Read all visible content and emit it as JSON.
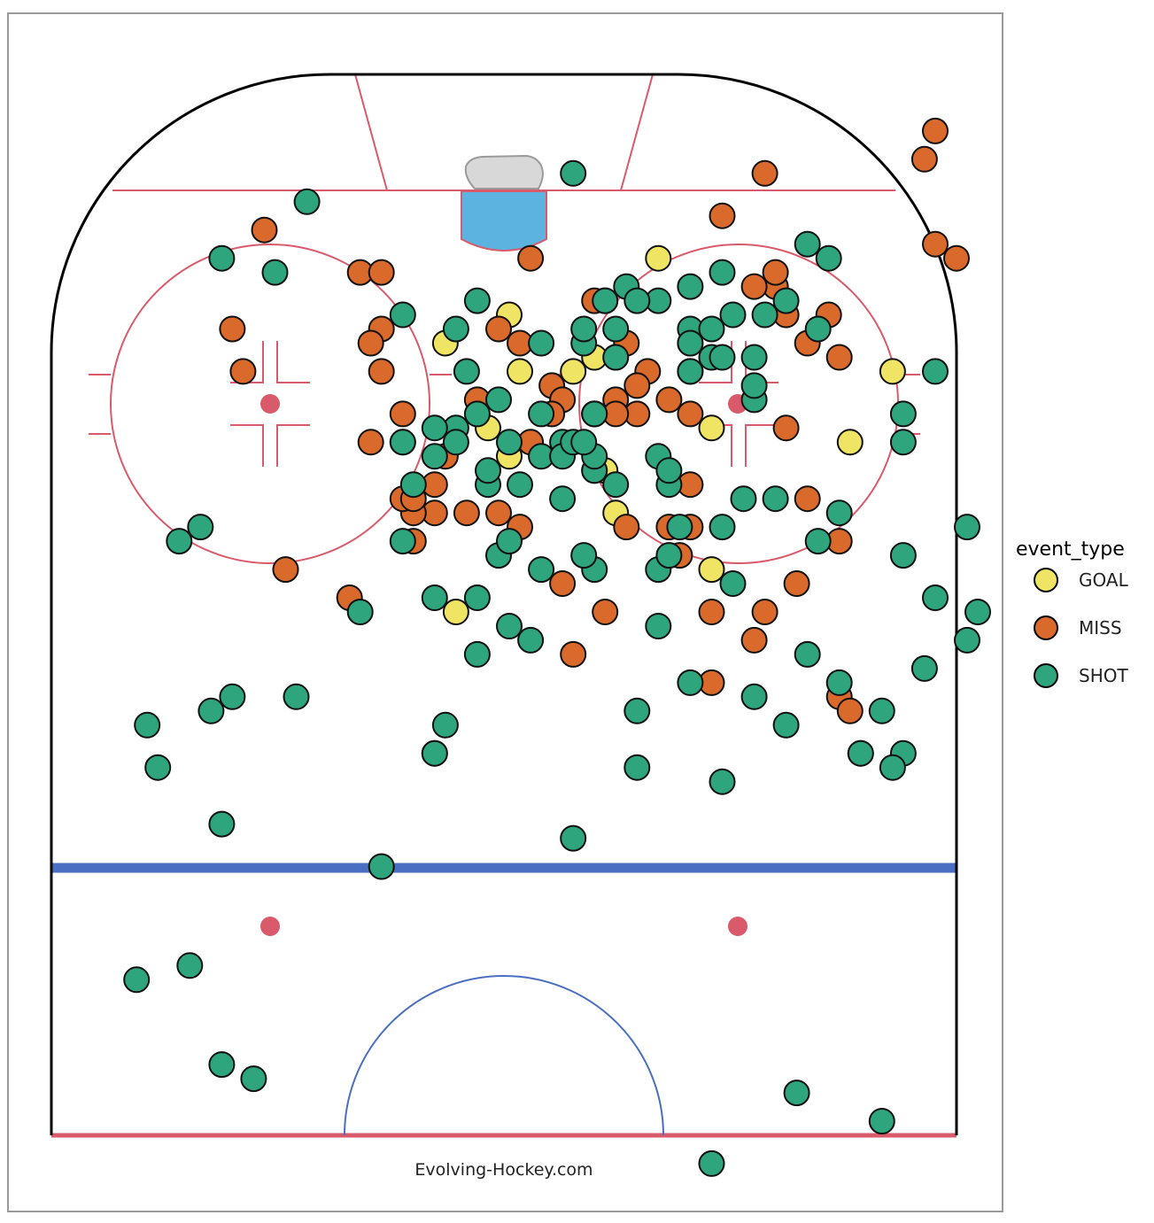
{
  "chart_data": {
    "type": "scatter",
    "title": "",
    "xlabel": "",
    "ylabel": "",
    "legend": {
      "title": "event_type",
      "position": "right",
      "entries": [
        {
          "label": "GOAL",
          "color": "#f0e464"
        },
        {
          "label": "MISS",
          "color": "#d96a2b"
        },
        {
          "label": "SHOT",
          "color": "#2ea57c"
        }
      ]
    },
    "rink_colors": {
      "boards": "#000000",
      "red_line": "#d95a6a",
      "blue_line": "#4a6fc2",
      "crease": "#5cb3df",
      "net": "#d8d8d8",
      "panel_border": "#9a9a9a"
    },
    "series": [
      {
        "name": "GOAL",
        "color": "#f0e464",
        "points": [
          [
            80,
            53
          ],
          [
            79,
            49
          ],
          [
            79,
            44
          ],
          [
            81,
            37
          ],
          [
            75,
            41
          ],
          [
            73,
            43
          ],
          [
            87,
            57
          ],
          [
            69,
            53
          ],
          [
            79,
            79
          ],
          [
            74,
            75
          ],
          [
            65,
            62
          ],
          [
            80,
            51
          ],
          [
            84,
            52
          ],
          [
            75,
            62
          ],
          [
            72,
            52
          ],
          [
            62,
            38
          ],
          [
            83,
            43
          ]
        ]
      },
      {
        "name": "MISS",
        "color": "#d96a2b",
        "points": [
          [
            56,
            74
          ],
          [
            55,
            75
          ],
          [
            96,
            83
          ],
          [
            88,
            83
          ],
          [
            94,
            82
          ],
          [
            87,
            85
          ],
          [
            81,
            44
          ],
          [
            87,
            45
          ],
          [
            77,
            58
          ],
          [
            64,
            48
          ],
          [
            82,
            17
          ],
          [
            79,
            31
          ],
          [
            73,
            37
          ],
          [
            59,
            49
          ],
          [
            76,
            55
          ],
          [
            62,
            62
          ],
          [
            76,
            33
          ],
          [
            60,
            66
          ],
          [
            68,
            60
          ],
          [
            62,
            52
          ],
          [
            71,
            60
          ],
          [
            68,
            54
          ],
          [
            69,
            36
          ],
          [
            62,
            67
          ],
          [
            64,
            70
          ],
          [
            70,
            71
          ],
          [
            75,
            69
          ],
          [
            80,
            74
          ],
          [
            67,
            74
          ],
          [
            89,
            20
          ],
          [
            57,
            62
          ],
          [
            81,
            54
          ],
          [
            79,
            56
          ],
          [
            69,
            34
          ],
          [
            70,
            33
          ],
          [
            82,
            42
          ],
          [
            90,
            63
          ],
          [
            76,
            51
          ],
          [
            82,
            31
          ],
          [
            74,
            45
          ],
          [
            71,
            36
          ],
          [
            84,
            51
          ],
          [
            78,
            47
          ],
          [
            78,
            55
          ],
          [
            77,
            53
          ],
          [
            63,
            28
          ],
          [
            69,
            39
          ],
          [
            77,
            48
          ],
          [
            52,
            36
          ],
          [
            74,
            33
          ],
          [
            67,
            34
          ],
          [
            81,
            30
          ],
          [
            77,
            40
          ],
          [
            86,
            29
          ],
          [
            86,
            31
          ],
          [
            79,
            60
          ],
          [
            81,
            60
          ],
          [
            93,
            67
          ],
          [
            85,
            68
          ],
          [
            85,
            66
          ],
          [
            70,
            34
          ],
          [
            76,
            60
          ],
          [
            76,
            47
          ],
          [
            86,
            68
          ],
          [
            76,
            53
          ],
          [
            79,
            18
          ],
          [
            74,
            30
          ],
          [
            68,
            58
          ],
          [
            66,
            59
          ],
          [
            76,
            51
          ],
          [
            69,
            42
          ],
          [
            68,
            44
          ],
          [
            83,
            73
          ],
          [
            83,
            69
          ],
          [
            81,
            71
          ],
          [
            65,
            22
          ]
        ]
      },
      {
        "name": "SHOT",
        "color": "#2ea57c",
        "points": [
          [
            72,
            51
          ],
          [
            55,
            78
          ],
          [
            52,
            80
          ],
          [
            52,
            76
          ],
          [
            51,
            79
          ],
          [
            54,
            69
          ],
          [
            91,
            24
          ],
          [
            87,
            73
          ],
          [
            66,
            42
          ],
          [
            67,
            43
          ],
          [
            65,
            46
          ],
          [
            73,
            46
          ],
          [
            68,
            59
          ],
          [
            60,
            45
          ],
          [
            63,
            36
          ],
          [
            62,
            29
          ],
          [
            80,
            53
          ],
          [
            76,
            51
          ],
          [
            87,
            16
          ],
          [
            65,
            57
          ],
          [
            75,
            38
          ],
          [
            70,
            48
          ],
          [
            71,
            44
          ],
          [
            74,
            48
          ],
          [
            71,
            53
          ],
          [
            54,
            37
          ],
          [
            59,
            40
          ],
          [
            63,
            40
          ],
          [
            67,
            33
          ],
          [
            76,
            40
          ],
          [
            76,
            46
          ],
          [
            71,
            58
          ],
          [
            73,
            57
          ],
          [
            68,
            63
          ],
          [
            72,
            58
          ],
          [
            65,
            51
          ],
          [
            77,
            42
          ],
          [
            61,
            43
          ],
          [
            56,
            66
          ],
          [
            64,
            64
          ],
          [
            70,
            65
          ],
          [
            72,
            51
          ],
          [
            73,
            48
          ],
          [
            74,
            49
          ],
          [
            73,
            51
          ],
          [
            66,
            50
          ],
          [
            74,
            50
          ],
          [
            81,
            46
          ],
          [
            84,
            52
          ],
          [
            81,
            50
          ],
          [
            82,
            50
          ],
          [
            85,
            54
          ],
          [
            84,
            57
          ],
          [
            80,
            62
          ],
          [
            80,
            63
          ],
          [
            80,
            66
          ],
          [
            77,
            66
          ],
          [
            82,
            60
          ],
          [
            82,
            62
          ],
          [
            83,
            64
          ],
          [
            85,
            60
          ],
          [
            86,
            63
          ],
          [
            83,
            67
          ],
          [
            84,
            69
          ],
          [
            67,
            72
          ],
          [
            63,
            83
          ],
          [
            82,
            72
          ],
          [
            88,
            71
          ],
          [
            76,
            80
          ],
          [
            58,
            82
          ],
          [
            52,
            76
          ],
          [
            50,
            63
          ],
          [
            62,
            87
          ],
          [
            60,
            86
          ],
          [
            68,
            86
          ],
          [
            74,
            80
          ],
          [
            78,
            66
          ],
          [
            79,
            60
          ],
          [
            81,
            60
          ],
          [
            93,
            49
          ],
          [
            79,
            39
          ],
          [
            73,
            36
          ],
          [
            70,
            68
          ],
          [
            66,
            58
          ],
          [
            82,
            53
          ],
          [
            74,
            43
          ],
          [
            84,
            55
          ],
          [
            83,
            33
          ],
          [
            82,
            38
          ],
          [
            84,
            40
          ],
          [
            74,
            33
          ],
          [
            71,
            41
          ],
          [
            72,
            41
          ],
          [
            75,
            36
          ],
          [
            74,
            38
          ],
          [
            71,
            34
          ],
          [
            56,
            17
          ],
          [
            55,
            15
          ],
          [
            68,
            14
          ],
          [
            36,
            8
          ],
          [
            37,
            13
          ],
          [
            30,
            16
          ],
          [
            29,
            19
          ],
          [
            23,
            62
          ],
          [
            28,
            70
          ],
          [
            26,
            78
          ],
          [
            67,
            12
          ],
          [
            47,
            16
          ],
          [
            56,
            23
          ],
          [
            44,
            31
          ],
          [
            52,
            36
          ],
          [
            57,
            74
          ],
          [
            51,
            55
          ],
          [
            55,
            55
          ],
          [
            46,
            49
          ],
          [
            86,
            21
          ],
          [
            69,
            74
          ],
          [
            66,
            80
          ],
          [
            51,
            10
          ],
          [
            54,
            9
          ],
          [
            61,
            57
          ],
          [
            59,
            71
          ],
          [
            57,
            60
          ],
          [
            79,
            83
          ]
        ]
      }
    ],
    "annotations": [
      "Evolving-Hockey.com"
    ]
  }
}
